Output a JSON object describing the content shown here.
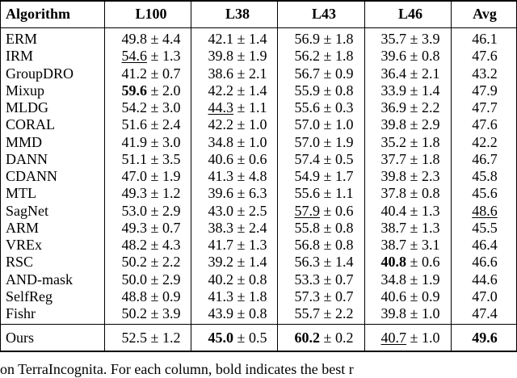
{
  "table": {
    "headers": [
      "Algorithm",
      "L100",
      "L38",
      "L43",
      "L46",
      "Avg"
    ],
    "rows": [
      {
        "algo": "ERM",
        "cells": [
          {
            "mean": "49.8",
            "std": "4.4"
          },
          {
            "mean": "42.1",
            "std": "1.4"
          },
          {
            "mean": "56.9",
            "std": "1.8"
          },
          {
            "mean": "35.7",
            "std": "3.9"
          }
        ],
        "avg": "46.1"
      },
      {
        "algo": "IRM",
        "cells": [
          {
            "mean": "54.6",
            "std": "1.3",
            "style": "underline"
          },
          {
            "mean": "39.8",
            "std": "1.9"
          },
          {
            "mean": "56.2",
            "std": "1.8"
          },
          {
            "mean": "39.6",
            "std": "0.8"
          }
        ],
        "avg": "47.6"
      },
      {
        "algo": "GroupDRO",
        "cells": [
          {
            "mean": "41.2",
            "std": "0.7"
          },
          {
            "mean": "38.6",
            "std": "2.1"
          },
          {
            "mean": "56.7",
            "std": "0.9"
          },
          {
            "mean": "36.4",
            "std": "2.1"
          }
        ],
        "avg": "43.2"
      },
      {
        "algo": "Mixup",
        "cells": [
          {
            "mean": "59.6",
            "std": "2.0",
            "style": "bold"
          },
          {
            "mean": "42.2",
            "std": "1.4"
          },
          {
            "mean": "55.9",
            "std": "0.8"
          },
          {
            "mean": "33.9",
            "std": "1.4"
          }
        ],
        "avg": "47.9"
      },
      {
        "algo": "MLDG",
        "cells": [
          {
            "mean": "54.2",
            "std": "3.0"
          },
          {
            "mean": "44.3",
            "std": "1.1",
            "style": "underline"
          },
          {
            "mean": "55.6",
            "std": "0.3"
          },
          {
            "mean": "36.9",
            "std": "2.2"
          }
        ],
        "avg": "47.7"
      },
      {
        "algo": "CORAL",
        "cells": [
          {
            "mean": "51.6",
            "std": "2.4"
          },
          {
            "mean": "42.2",
            "std": "1.0"
          },
          {
            "mean": "57.0",
            "std": "1.0"
          },
          {
            "mean": "39.8",
            "std": "2.9"
          }
        ],
        "avg": "47.6"
      },
      {
        "algo": "MMD",
        "cells": [
          {
            "mean": "41.9",
            "std": "3.0"
          },
          {
            "mean": "34.8",
            "std": "1.0"
          },
          {
            "mean": "57.0",
            "std": "1.9"
          },
          {
            "mean": "35.2",
            "std": "1.8"
          }
        ],
        "avg": "42.2"
      },
      {
        "algo": "DANN",
        "cells": [
          {
            "mean": "51.1",
            "std": "3.5"
          },
          {
            "mean": "40.6",
            "std": "0.6"
          },
          {
            "mean": "57.4",
            "std": "0.5"
          },
          {
            "mean": "37.7",
            "std": "1.8"
          }
        ],
        "avg": "46.7"
      },
      {
        "algo": "CDANN",
        "cells": [
          {
            "mean": "47.0",
            "std": "1.9"
          },
          {
            "mean": "41.3",
            "std": "4.8"
          },
          {
            "mean": "54.9",
            "std": "1.7"
          },
          {
            "mean": "39.8",
            "std": "2.3"
          }
        ],
        "avg": "45.8"
      },
      {
        "algo": "MTL",
        "cells": [
          {
            "mean": "49.3",
            "std": "1.2"
          },
          {
            "mean": "39.6",
            "std": "6.3"
          },
          {
            "mean": "55.6",
            "std": "1.1"
          },
          {
            "mean": "37.8",
            "std": "0.8"
          }
        ],
        "avg": "45.6"
      },
      {
        "algo": "SagNet",
        "cells": [
          {
            "mean": "53.0",
            "std": "2.9"
          },
          {
            "mean": "43.0",
            "std": "2.5"
          },
          {
            "mean": "57.9",
            "std": "0.6",
            "style": "underline"
          },
          {
            "mean": "40.4",
            "std": "1.3"
          }
        ],
        "avg": "48.6",
        "avg_style": "underline"
      },
      {
        "algo": "ARM",
        "cells": [
          {
            "mean": "49.3",
            "std": "0.7"
          },
          {
            "mean": "38.3",
            "std": "2.4"
          },
          {
            "mean": "55.8",
            "std": "0.8"
          },
          {
            "mean": "38.7",
            "std": "1.3"
          }
        ],
        "avg": "45.5"
      },
      {
        "algo": "VREx",
        "cells": [
          {
            "mean": "48.2",
            "std": "4.3"
          },
          {
            "mean": "41.7",
            "std": "1.3"
          },
          {
            "mean": "56.8",
            "std": "0.8"
          },
          {
            "mean": "38.7",
            "std": "3.1"
          }
        ],
        "avg": "46.4"
      },
      {
        "algo": "RSC",
        "cells": [
          {
            "mean": "50.2",
            "std": "2.2"
          },
          {
            "mean": "39.2",
            "std": "1.4"
          },
          {
            "mean": "56.3",
            "std": "1.4"
          },
          {
            "mean": "40.8",
            "std": "0.6",
            "style": "bold"
          }
        ],
        "avg": "46.6"
      },
      {
        "algo": "AND-mask",
        "cells": [
          {
            "mean": "50.0",
            "std": "2.9"
          },
          {
            "mean": "40.2",
            "std": "0.8"
          },
          {
            "mean": "53.3",
            "std": "0.7"
          },
          {
            "mean": "34.8",
            "std": "1.9"
          }
        ],
        "avg": "44.6"
      },
      {
        "algo": "SelfReg",
        "cells": [
          {
            "mean": "48.8",
            "std": "0.9"
          },
          {
            "mean": "41.3",
            "std": "1.8"
          },
          {
            "mean": "57.3",
            "std": "0.7"
          },
          {
            "mean": "40.6",
            "std": "0.9"
          }
        ],
        "avg": "47.0"
      },
      {
        "algo": "Fishr",
        "cells": [
          {
            "mean": "50.2",
            "std": "3.9"
          },
          {
            "mean": "43.9",
            "std": "0.8"
          },
          {
            "mean": "55.7",
            "std": "2.2"
          },
          {
            "mean": "39.8",
            "std": "1.0"
          }
        ],
        "avg": "47.4"
      }
    ],
    "ours": {
      "algo": "Ours",
      "cells": [
        {
          "mean": "52.5",
          "std": "1.2"
        },
        {
          "mean": "45.0",
          "std": "0.5",
          "style": "bold"
        },
        {
          "mean": "60.2",
          "std": "0.2",
          "style": "bold"
        },
        {
          "mean": "40.7",
          "std": "1.0",
          "style": "underline"
        }
      ],
      "avg": "49.6",
      "avg_style": "bold"
    }
  },
  "caption": "on TerraIncognita. For each column, bold indicates the best r"
}
